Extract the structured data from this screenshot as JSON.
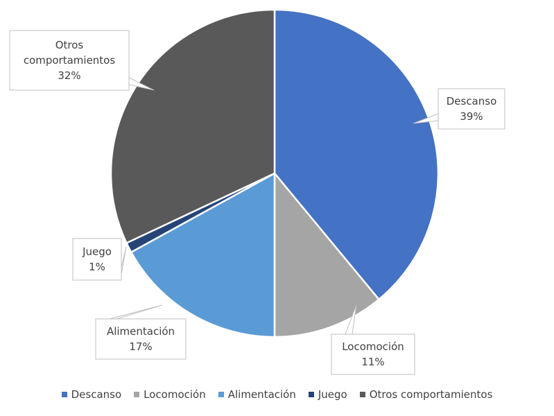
{
  "chart_data": {
    "type": "pie",
    "slices": [
      {
        "label": "Descanso",
        "value": 39,
        "value_label": "39%",
        "color": "#4472C4"
      },
      {
        "label": "Locomoción",
        "value": 11,
        "value_label": "11%",
        "color": "#A5A5A5"
      },
      {
        "label": "Alimentación",
        "value": 17,
        "value_label": "17%",
        "color": "#5B9BD5"
      },
      {
        "label": "Juego",
        "value": 1,
        "value_label": "1%",
        "color": "#264478"
      },
      {
        "label": "Otros comportamientos",
        "value": 32,
        "value_label": "32%",
        "color": "#595959"
      }
    ],
    "legend_position": "bottom",
    "data_labels": "callouts"
  }
}
